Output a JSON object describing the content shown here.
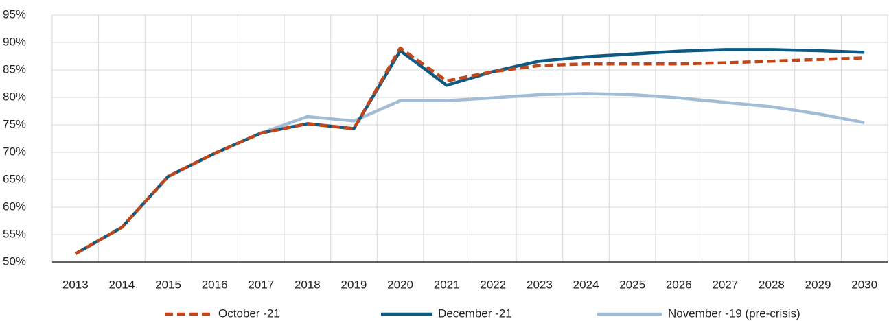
{
  "chart_data": {
    "type": "line",
    "categories": [
      "2013",
      "2014",
      "2015",
      "2016",
      "2017",
      "2018",
      "2019",
      "2020",
      "2021",
      "2022",
      "2023",
      "2024",
      "2025",
      "2026",
      "2027",
      "2028",
      "2029",
      "2030"
    ],
    "series": [
      {
        "name": "October -21",
        "color": "#c0471b",
        "dashed": true,
        "values": [
          51.5,
          56.3,
          65.6,
          69.8,
          73.5,
          75.2,
          74.3,
          89.0,
          83.0,
          84.7,
          85.8,
          86.1,
          86.1,
          86.1,
          86.3,
          86.6,
          86.9,
          87.2
        ]
      },
      {
        "name": "December -21",
        "color": "#0e5a82",
        "dashed": false,
        "values": [
          51.5,
          56.3,
          65.6,
          69.8,
          73.5,
          75.2,
          74.3,
          88.5,
          82.2,
          84.7,
          86.6,
          87.4,
          87.9,
          88.4,
          88.7,
          88.7,
          88.5,
          88.2
        ]
      },
      {
        "name": "November -19 (pre-crisis)",
        "color": "#a3bcd6",
        "dashed": false,
        "values": [
          51.5,
          56.3,
          65.6,
          69.8,
          73.5,
          76.5,
          75.7,
          79.4,
          79.4,
          79.9,
          80.5,
          80.7,
          80.5,
          79.9,
          79.1,
          78.3,
          77.0,
          75.4
        ]
      }
    ],
    "ylim": [
      50,
      95
    ],
    "yticks": [
      {
        "value": 50,
        "label": "50%"
      },
      {
        "value": 55,
        "label": "55%"
      },
      {
        "value": 60,
        "label": "60%"
      },
      {
        "value": 65,
        "label": "65%"
      },
      {
        "value": 70,
        "label": "70%"
      },
      {
        "value": 75,
        "label": "75%"
      },
      {
        "value": 80,
        "label": "80%"
      },
      {
        "value": 85,
        "label": "85%"
      },
      {
        "value": 90,
        "label": "90%"
      },
      {
        "value": 95,
        "label": "95%"
      }
    ],
    "grid": true,
    "legend": "bottom"
  }
}
